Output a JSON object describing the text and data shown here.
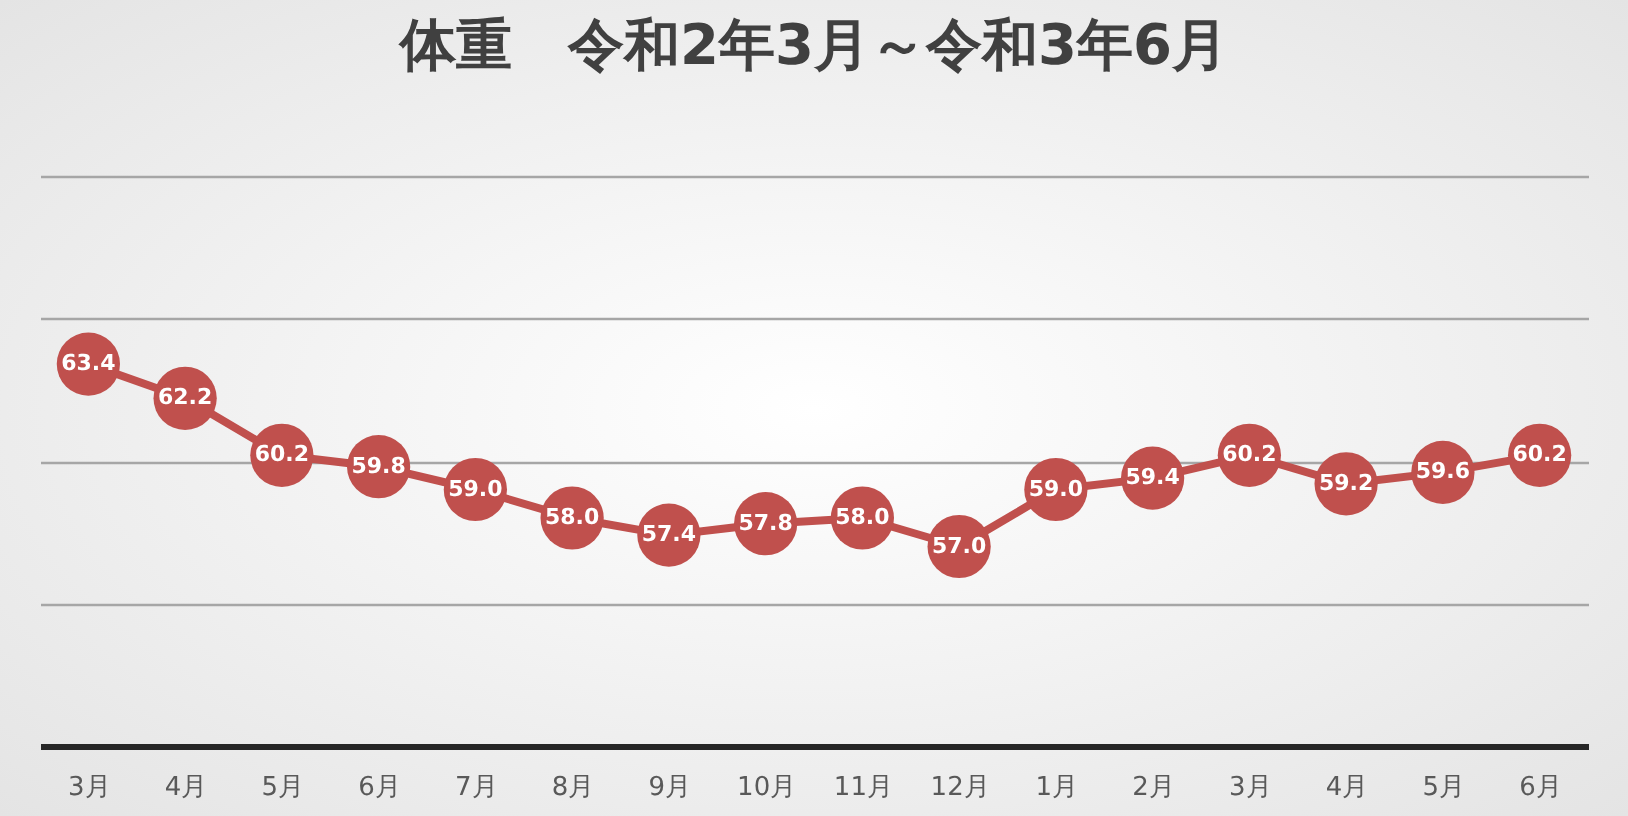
{
  "chart_data": {
    "type": "line",
    "title": "体重　令和2年3月～令和3年6月",
    "categories": [
      "3月",
      "4月",
      "5月",
      "6月",
      "7月",
      "8月",
      "9月",
      "10月",
      "11月",
      "12月",
      "1月",
      "2月",
      "3月",
      "4月",
      "5月",
      "6月"
    ],
    "series": [
      {
        "color": "#c0504d",
        "values": [
          63.4,
          62.2,
          60.2,
          59.8,
          59.0,
          58.0,
          57.4,
          57.8,
          58.0,
          57.0,
          59.0,
          59.4,
          60.2,
          59.2,
          59.6,
          60.2
        ],
        "value_labels": [
          "63.4",
          "62.2",
          "60.2",
          "59.8",
          "59.0",
          "58.0",
          "57.4",
          "57.8",
          "58.0",
          "57.0",
          "59.0",
          "59.4",
          "60.2",
          "59.2",
          "59.6",
          "60.2"
        ]
      }
    ],
    "ylim": [
      50,
      70
    ],
    "yticks": [
      {
        "value": 50,
        "label": null
      },
      {
        "value": 55,
        "label": null
      },
      {
        "value": 60,
        "label": null
      },
      {
        "value": 65,
        "label": null
      },
      {
        "value": 70,
        "label": null
      }
    ],
    "tick_labels": "x",
    "grid": "y",
    "marker": "circle",
    "line_style": "solid"
  }
}
